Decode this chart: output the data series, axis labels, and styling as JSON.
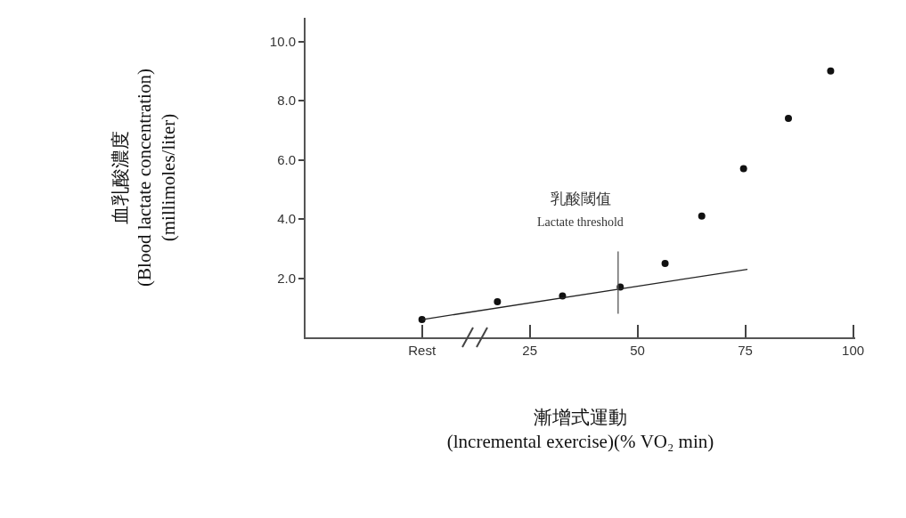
{
  "chart_data": {
    "type": "scatter",
    "xlabel": "漸增式運動\n(lncremental exercise)(% VO₂ min)",
    "ylabel": "血乳酸濃度\n(Blood lactate concentration)\n(millimoles/liter)",
    "xlim": [
      -27,
      100.5
    ],
    "xticks": [
      {
        "value": 0,
        "label": "Rest"
      },
      25,
      50,
      75,
      100
    ],
    "ylim": [
      0,
      10.8
    ],
    "yticks": [
      {
        "value": 2,
        "label": "2.0"
      },
      {
        "value": 4,
        "label": "4.0"
      },
      {
        "value": 6,
        "label": "6.0"
      },
      {
        "value": 8,
        "label": "8.0"
      },
      {
        "value": 10,
        "label": "10.0"
      }
    ],
    "series": [
      {
        "color": "#111111",
        "marker": "circle",
        "x": [
          0,
          17.5,
          32.6,
          46,
          56.4,
          64.9,
          74.6,
          85,
          94.8
        ],
        "values": [
          0.6,
          1.2,
          1.4,
          1.7,
          2.5,
          4.1,
          5.7,
          7.4,
          9.0
        ]
      },
      {
        "type": "line",
        "marker": "none",
        "color": "#222222",
        "x": [
          0,
          75.5
        ],
        "values": [
          0.6,
          2.3
        ]
      },
      {
        "type": "line",
        "marker": "none",
        "color": "#555555",
        "x": [
          45.5,
          45.5
        ],
        "values": [
          0.8,
          2.9
        ]
      }
    ],
    "annotations": [
      "乳酸閾值",
      "Lactate threshold"
    ],
    "grid": false,
    "line_style": "solid"
  }
}
